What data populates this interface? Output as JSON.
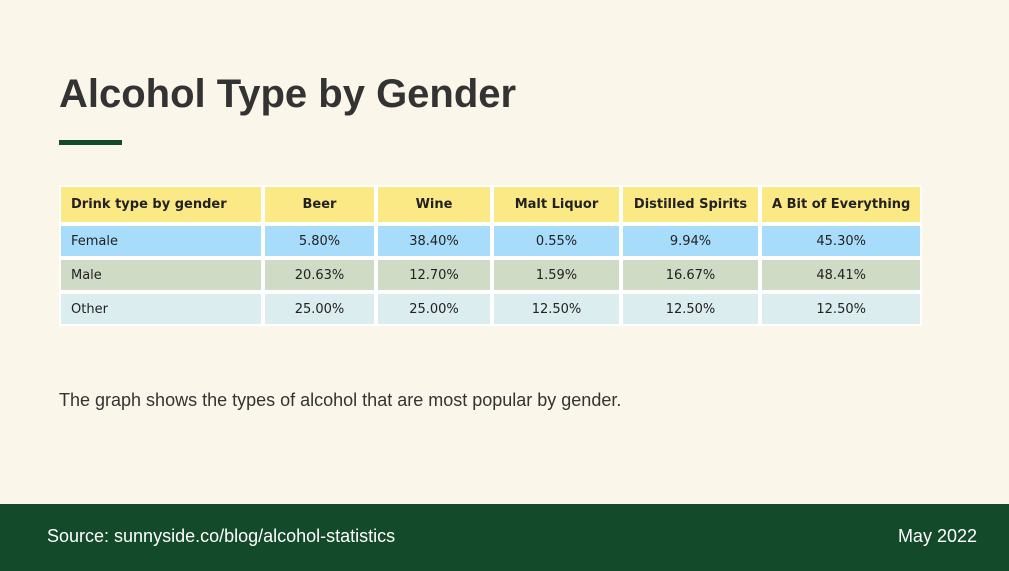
{
  "title": "Alcohol Type by Gender",
  "description": "The graph shows the types of alcohol that are most popular by gender.",
  "footer": {
    "source": "Source: sunnyside.co/blog/alcohol-statistics",
    "date": "May 2022"
  },
  "colors": {
    "background": "#faf6e9",
    "accent": "#124a2a",
    "header": "#fbe986",
    "female_row": "#a8dcfb",
    "male_row": "#d0dbc6",
    "other_row": "#dcedef"
  },
  "chart_data": {
    "type": "table",
    "columns": [
      "Drink type by gender",
      "Beer",
      "Wine",
      "Malt Liquor",
      "Distilled Spirits",
      "A Bit of Everything"
    ],
    "rows": [
      {
        "label": "Female",
        "cells": [
          "5.80%",
          "38.40%",
          "0.55%",
          "9.94%",
          "45.30%"
        ]
      },
      {
        "label": "Male",
        "cells": [
          "20.63%",
          "12.70%",
          "1.59%",
          "16.67%",
          "48.41%"
        ]
      },
      {
        "label": "Other",
        "cells": [
          "25.00%",
          "25.00%",
          "12.50%",
          "12.50%",
          "12.50%"
        ]
      }
    ]
  }
}
